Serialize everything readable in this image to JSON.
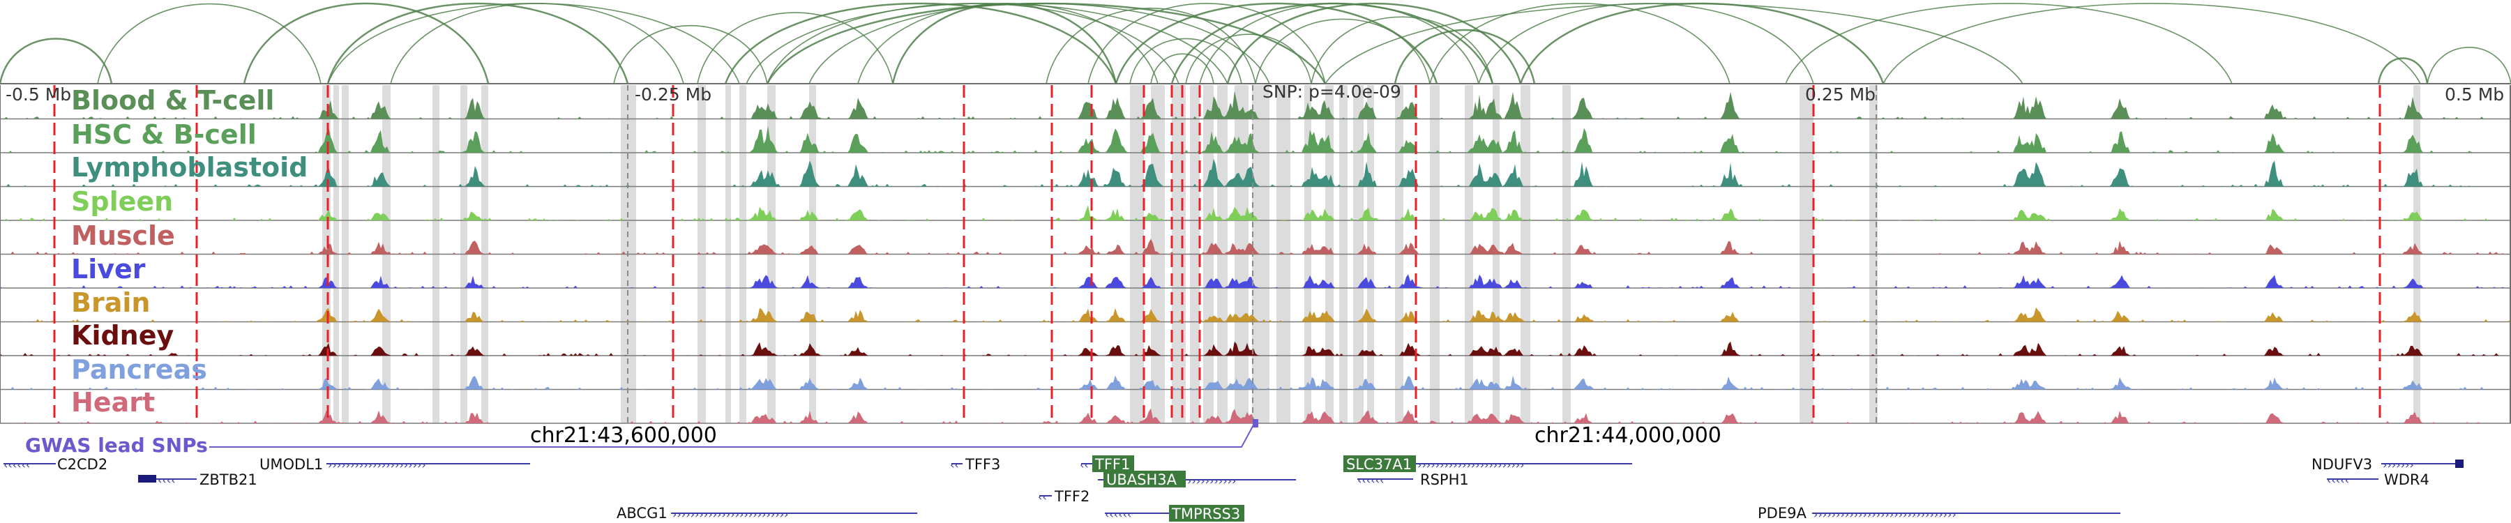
{
  "title": "",
  "scale": {
    "left_label": "-0.5 Mb",
    "left_mid_label": "-0.25 Mb",
    "snp_label": "SNP: p=4.0e-09",
    "right_mid_label": "0.25 Mb",
    "right_label": "0.5 Mb"
  },
  "region": {
    "chrom": "chr21",
    "start": 43350000,
    "end": 44350000,
    "lead_snp": 43850000
  },
  "tracks": [
    {
      "name": "Blood & T-cell",
      "color": "#5b8f58"
    },
    {
      "name": "HSC & B-cell",
      "color": "#5aa05a"
    },
    {
      "name": "Lymphoblastoid",
      "color": "#3f8f7f"
    },
    {
      "name": "Spleen",
      "color": "#7fce5a"
    },
    {
      "name": "Muscle",
      "color": "#c06060"
    },
    {
      "name": "Liver",
      "color": "#4a4adf"
    },
    {
      "name": "Brain",
      "color": "#c8962a"
    },
    {
      "name": "Kidney",
      "color": "#6a0e0e"
    },
    {
      "name": "Pancreas",
      "color": "#7fa0dc"
    },
    {
      "name": "Heart",
      "color": "#d06a7a"
    }
  ],
  "snp_track": {
    "label": "GWAS lead SNPs",
    "color": "#6a5acd"
  },
  "coordinate_labels": [
    "chr21:43,600,000",
    "chr21:44,000,000"
  ],
  "genes": [
    {
      "name": "C2CD2",
      "boxed": false
    },
    {
      "name": "ZBTB21",
      "boxed": false
    },
    {
      "name": "UMODL1",
      "boxed": false
    },
    {
      "name": "ABCG1",
      "boxed": false
    },
    {
      "name": "TFF3",
      "boxed": false
    },
    {
      "name": "TFF2",
      "boxed": false
    },
    {
      "name": "TFF1",
      "boxed": true
    },
    {
      "name": "UBASH3A",
      "boxed": true
    },
    {
      "name": "TMPRSS3",
      "boxed": true
    },
    {
      "name": "SLC37A1",
      "boxed": true
    },
    {
      "name": "RSPH1",
      "boxed": false
    },
    {
      "name": "PDE9A",
      "boxed": false
    },
    {
      "name": "NDUFV3",
      "boxed": false
    },
    {
      "name": "WDR4",
      "boxed": false
    }
  ],
  "colors": {
    "arc": "#4f7f4a",
    "highlight": "#dcdcdc",
    "red_marker": "#e8202a",
    "gray_marker": "#8a8a8a",
    "gene_strand": "#3a3aa8",
    "gene_box": "#3c7a3c",
    "snp_line": "#6a5acd"
  }
}
